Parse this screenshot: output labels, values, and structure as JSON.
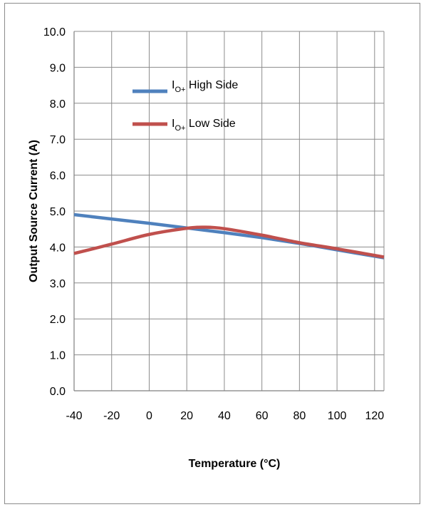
{
  "chart_data": {
    "type": "line",
    "xlabel": "Temperature  (°C)",
    "ylabel": "Output Source Current (A)",
    "xlim": [
      -40,
      125
    ],
    "ylim": [
      0,
      10
    ],
    "x_ticks": [
      "-40",
      "-20",
      "0",
      "20",
      "40",
      "60",
      "80",
      "100",
      "120"
    ],
    "y_ticks": [
      "0.0",
      "1.0",
      "2.0",
      "3.0",
      "4.0",
      "5.0",
      "6.0",
      "7.0",
      "8.0",
      "9.0",
      "10.0"
    ],
    "grid": true,
    "legend_position": "upper-left-inside",
    "series": [
      {
        "name_main": "I",
        "name_sub": "O+",
        "name_rest": " High Side",
        "color": "#4f81bd",
        "x": [
          -40,
          -20,
          0,
          20,
          40,
          60,
          80,
          100,
          125
        ],
        "y": [
          4.9,
          4.78,
          4.66,
          4.53,
          4.4,
          4.26,
          4.1,
          3.92,
          3.7
        ]
      },
      {
        "name_main": "I",
        "name_sub": "O+",
        "name_rest": " Low Side",
        "color": "#c0504d",
        "x": [
          -40,
          -20,
          0,
          20,
          30,
          40,
          60,
          80,
          100,
          125
        ],
        "y": [
          3.82,
          4.08,
          4.35,
          4.52,
          4.55,
          4.51,
          4.33,
          4.12,
          3.95,
          3.72
        ]
      }
    ]
  }
}
